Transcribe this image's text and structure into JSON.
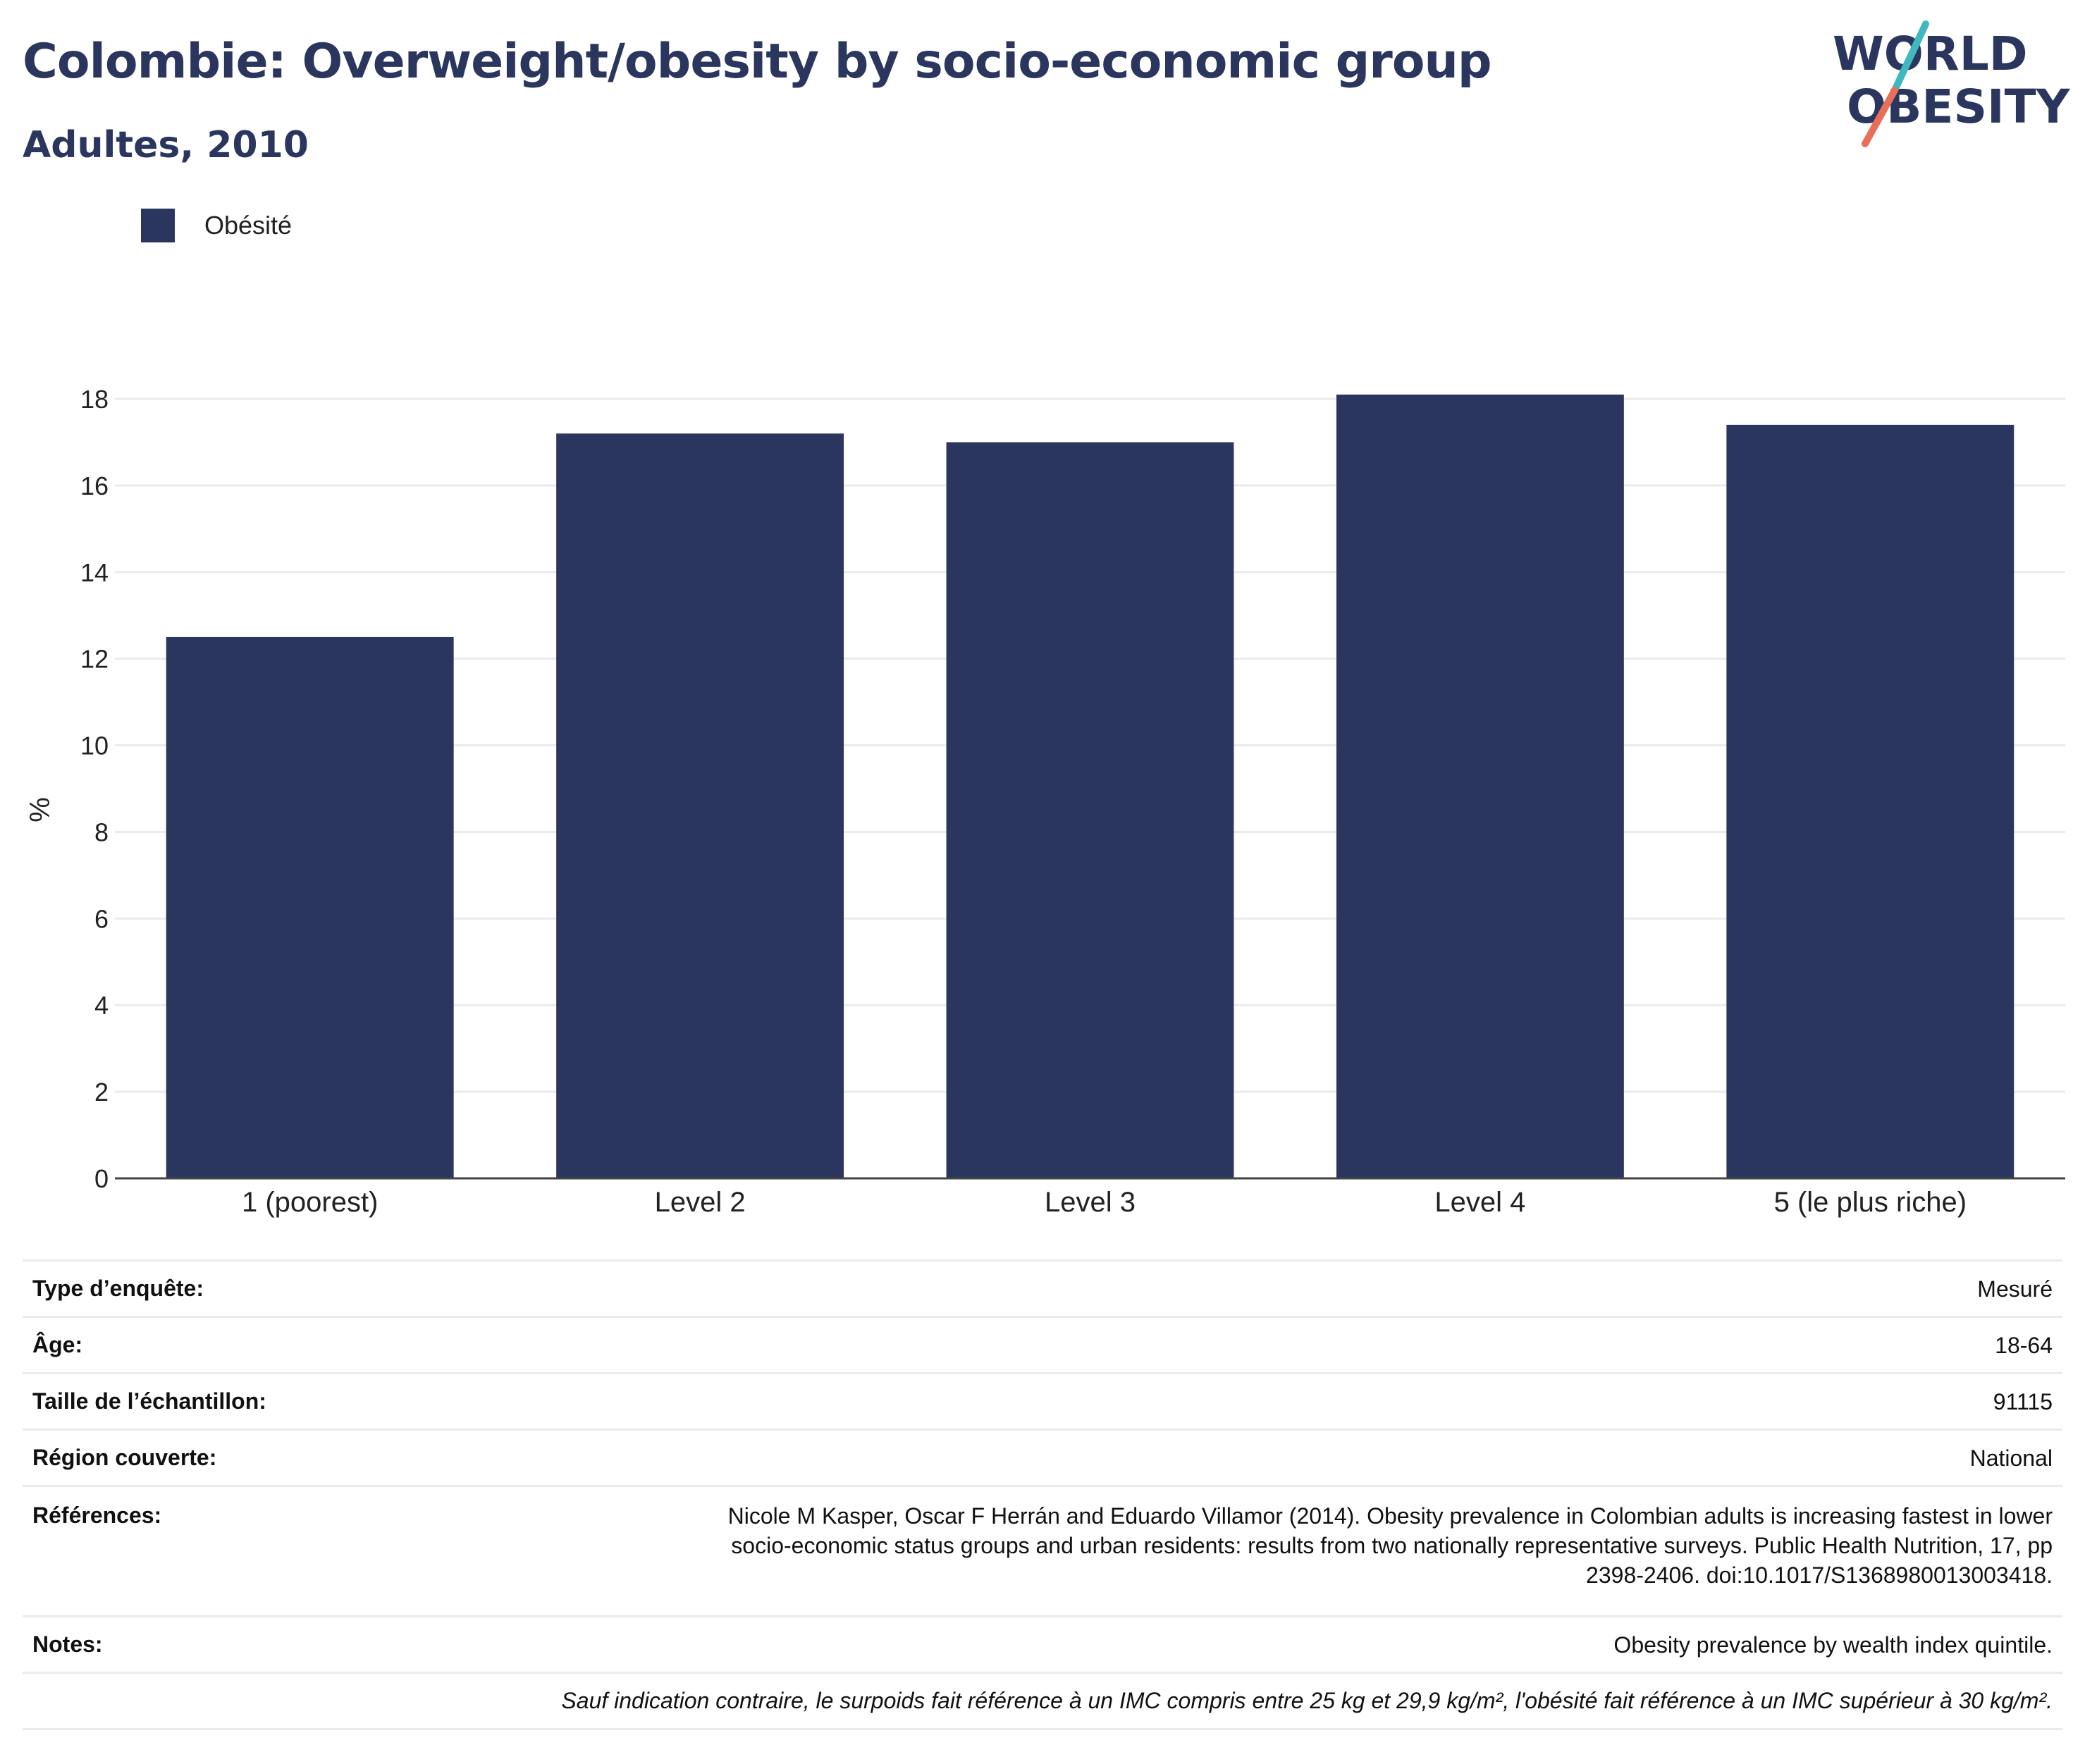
{
  "header": {
    "title": "Colombie: Overweight/obesity by socio-economic group",
    "subtitle": "Adultes, 2010"
  },
  "logo": {
    "line1": "WORLD",
    "line2": "OBESITY",
    "colors": {
      "text": "#2b365f",
      "slash_teal": "#3fb8c0",
      "slash_coral": "#e8705a"
    }
  },
  "legend": {
    "items": [
      {
        "label": "Obésité",
        "color": "#2b365f"
      }
    ]
  },
  "chart_data": {
    "type": "bar",
    "title": "Colombie: Overweight/obesity by socio-economic group",
    "subtitle": "Adultes, 2010",
    "xlabel": "",
    "ylabel": "%",
    "categories": [
      "1 (poorest)",
      "Level 2",
      "Level 3",
      "Level 4",
      "5 (le plus riche)"
    ],
    "series": [
      {
        "name": "Obésité",
        "color": "#2b365f",
        "values": [
          12.5,
          17.2,
          17.0,
          18.1,
          17.4
        ]
      }
    ],
    "ylim": [
      0,
      18
    ],
    "yticks": [
      0,
      2,
      4,
      6,
      8,
      10,
      12,
      14,
      16,
      18
    ],
    "grid": true,
    "legend_position": "top-left"
  },
  "info": {
    "survey_type": {
      "label": "Type d’enquête:",
      "value": "Mesuré"
    },
    "age": {
      "label": "Âge:",
      "value": "18-64"
    },
    "sample_size": {
      "label": "Taille de l’échantillon:",
      "value": "91115"
    },
    "region": {
      "label": "Région couverte:",
      "value": "National"
    },
    "references": {
      "label": "Références:",
      "line1": "Nicole M Kasper, Oscar F Herrán and Eduardo Villamor (2014). Obesity prevalence in Colombian adults is increasing fastest in lower",
      "line2": "socio-economic status groups and urban residents: results from two nationally representative surveys. Public Health Nutrition, 17, pp",
      "line3": "2398-2406. doi:10.1017/S1368980013003418."
    },
    "notes": {
      "label": "Notes:",
      "value": "Obesity prevalence by wealth index quintile."
    },
    "footnote": "Sauf indication contraire, le surpoids fait référence à un IMC compris entre 25 kg et 29,9 kg/m², l'obésité fait référence à un IMC supérieur à 30 kg/m²."
  }
}
